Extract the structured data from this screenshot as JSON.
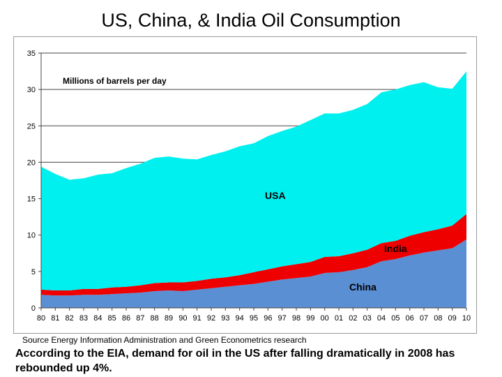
{
  "slide": {
    "title": "US, China, & India Oil Consumption",
    "source": "Source  Energy Information Administration and Green Econometrics research",
    "caption": "According to the EIA, demand for oil in the US after falling dramatically in 2008 has rebounded up 4%."
  },
  "chart_data": {
    "type": "area",
    "stacked": true,
    "unit_label": "Millions of barrels per day",
    "categories": [
      "80",
      "81",
      "82",
      "83",
      "84",
      "85",
      "86",
      "87",
      "88",
      "89",
      "90",
      "91",
      "92",
      "93",
      "94",
      "95",
      "96",
      "97",
      "98",
      "99",
      "00",
      "01",
      "02",
      "03",
      "04",
      "05",
      "06",
      "07",
      "08",
      "09",
      "10"
    ],
    "ylim": [
      0,
      35
    ],
    "yticks": [
      0,
      5,
      10,
      15,
      20,
      25,
      30,
      35
    ],
    "grid": true,
    "series": [
      {
        "name": "China",
        "color": "#5b8fd4",
        "values": [
          1.8,
          1.7,
          1.7,
          1.8,
          1.8,
          1.9,
          2.0,
          2.1,
          2.3,
          2.4,
          2.3,
          2.5,
          2.7,
          2.9,
          3.1,
          3.3,
          3.6,
          3.9,
          4.1,
          4.3,
          4.8,
          4.9,
          5.2,
          5.6,
          6.4,
          6.7,
          7.2,
          7.6,
          7.9,
          8.2,
          9.4
        ]
      },
      {
        "name": "India",
        "color": "#ee0000",
        "values": [
          0.7,
          0.7,
          0.7,
          0.8,
          0.8,
          0.9,
          0.9,
          1.0,
          1.1,
          1.1,
          1.2,
          1.2,
          1.3,
          1.3,
          1.4,
          1.6,
          1.7,
          1.8,
          1.9,
          2.0,
          2.2,
          2.2,
          2.3,
          2.4,
          2.5,
          2.5,
          2.7,
          2.8,
          2.9,
          3.1,
          3.5
        ]
      },
      {
        "name": "USA",
        "color": "#00f0f0",
        "values": [
          16.9,
          16.0,
          15.2,
          15.2,
          15.7,
          15.7,
          16.3,
          16.7,
          17.2,
          17.3,
          17.0,
          16.7,
          17.0,
          17.3,
          17.7,
          17.7,
          18.3,
          18.6,
          18.9,
          19.5,
          19.7,
          19.6,
          19.7,
          20.0,
          20.7,
          20.8,
          20.7,
          20.6,
          19.5,
          18.8,
          19.6
        ]
      }
    ]
  }
}
